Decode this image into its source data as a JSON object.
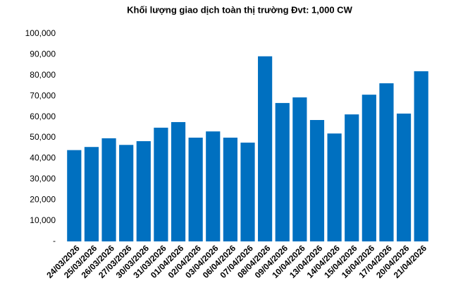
{
  "chart_data": {
    "type": "bar",
    "title": "Khối lượng giao dịch toàn thị trường Đvt: 1,000 CW",
    "categories": [
      "24/03/2026",
      "25/03/2026",
      "26/03/2026",
      "27/03/2026",
      "30/03/2026",
      "31/03/2026",
      "01/04/2026",
      "02/04/2026",
      "03/04/2026",
      "06/04/2026",
      "07/04/2026",
      "08/04/2026",
      "09/04/2026",
      "10/04/2026",
      "13/04/2026",
      "14/04/2026",
      "15/04/2026",
      "16/04/2026",
      "17/04/2026",
      "20/04/2026",
      "21/04/2026"
    ],
    "values": [
      44000,
      45500,
      49700,
      46500,
      48300,
      54800,
      57500,
      50000,
      53000,
      50000,
      47600,
      89200,
      66700,
      69400,
      58500,
      52000,
      61200,
      70700,
      76200,
      61600,
      82000
    ],
    "color": "#0070c0",
    "ylim": [
      0,
      100000
    ],
    "yticks": [
      {
        "value": 0,
        "label": "-"
      },
      {
        "value": 10000,
        "label": "10,000"
      },
      {
        "value": 20000,
        "label": "20,000"
      },
      {
        "value": 30000,
        "label": "30,000"
      },
      {
        "value": 40000,
        "label": "40,000"
      },
      {
        "value": 50000,
        "label": "50,000"
      },
      {
        "value": 60000,
        "label": "60,000"
      },
      {
        "value": 70000,
        "label": "70,000"
      },
      {
        "value": 80000,
        "label": "80,000"
      },
      {
        "value": 90000,
        "label": "90,000"
      },
      {
        "value": 100000,
        "label": "100,000"
      }
    ],
    "grid": false
  }
}
